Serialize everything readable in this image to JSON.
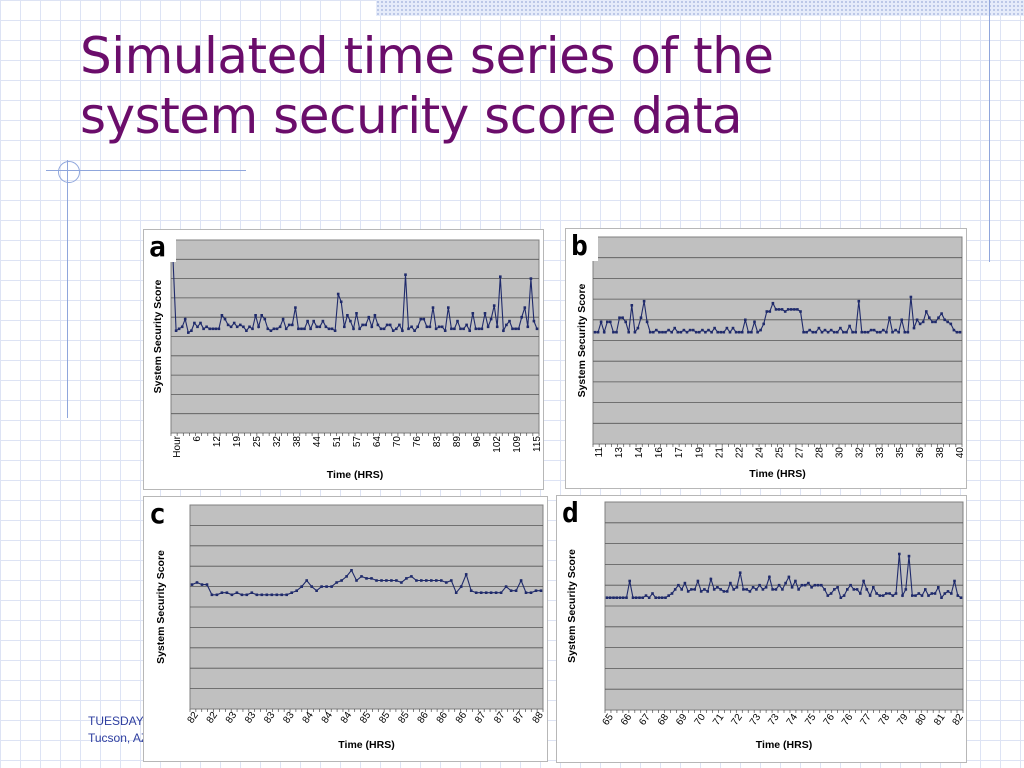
{
  "slide": {
    "title_line1": "Simulated time series of the",
    "title_line2": "system security score data",
    "footer_line1": "TUESDAY",
    "footer_line2": "Tucson, AZ"
  },
  "colors": {
    "title": "#6b0d6b",
    "plot_background": "#c0c0c0",
    "series": "#1f2a6b",
    "footer": "#2f3fa0"
  },
  "chart_data": [
    {
      "id": "a",
      "type": "line",
      "panel_label": "a",
      "xlabel": "Time (HRS)",
      "ylabel": "System Security Score",
      "ylim": [
        0,
        10
      ],
      "grid": true,
      "x_ticks": [
        "Hour",
        "6",
        "12",
        "19",
        "25",
        "32",
        "38",
        "44",
        "51",
        "57",
        "64",
        "70",
        "76",
        "83",
        "89",
        "96",
        "102",
        "109",
        "115"
      ],
      "series": [
        {
          "values": [
            9,
            5.3,
            5.4,
            5.5,
            5.9,
            5.2,
            5.3,
            5.7,
            5.5,
            5.7,
            5.4,
            5.5,
            5.4,
            5.4,
            5.4,
            5.4,
            6.1,
            5.9,
            5.6,
            5.5,
            5.7,
            5.5,
            5.6,
            5.5,
            5.3,
            5.5,
            5.4,
            6.1,
            5.5,
            6.1,
            5.9,
            5.4,
            5.3,
            5.4,
            5.4,
            5.5,
            5.9,
            5.4,
            5.6,
            5.6,
            6.5,
            5.4,
            5.4,
            5.4,
            5.8,
            5.4,
            5.8,
            5.5,
            5.5,
            5.8,
            5.5,
            5.4,
            5.4,
            5.3,
            7.2,
            6.8,
            5.5,
            6.1,
            5.8,
            5.4,
            6.2,
            5.4,
            5.6,
            5.6,
            6,
            5.5,
            6.1,
            5.6,
            5.4,
            5.4,
            5.6,
            5.6,
            5.3,
            5.4,
            5.6,
            5.3,
            8.2,
            5.4,
            5.5,
            5.3,
            5.5,
            5.9,
            5.9,
            5.5,
            5.5,
            6.5,
            5.4,
            5.5,
            5.5,
            5.3,
            6.5,
            5.4,
            5.4,
            5.8,
            5.4,
            5.4,
            5.6,
            5.3,
            6.2,
            5.4,
            5.4,
            5.4,
            6.2,
            5.5,
            5.9,
            6.6,
            5.5,
            8.1,
            5.3,
            5.6,
            5.8,
            5.4,
            5.4,
            5.4,
            6,
            6.5,
            5.5,
            8,
            5.8,
            5.4
          ]
        }
      ]
    },
    {
      "id": "b",
      "type": "line",
      "panel_label": "b",
      "xlabel": "Time (HRS)",
      "ylabel": "System Security Score",
      "ylim": [
        0,
        10
      ],
      "grid": true,
      "x_ticks": [
        "11",
        "13",
        "14",
        "16",
        "17",
        "19",
        "21",
        "22",
        "24",
        "25",
        "27",
        "28",
        "30",
        "32",
        "33",
        "35",
        "36",
        "38",
        "40"
      ],
      "series": [
        {
          "values": [
            5.4,
            5.4,
            5.9,
            5.4,
            5.9,
            5.9,
            5.4,
            5.4,
            6.1,
            6.1,
            5.9,
            5.4,
            6.7,
            5.4,
            5.6,
            6.1,
            6.9,
            5.9,
            5.4,
            5.4,
            5.5,
            5.4,
            5.4,
            5.4,
            5.5,
            5.4,
            5.6,
            5.4,
            5.4,
            5.5,
            5.4,
            5.5,
            5.5,
            5.4,
            5.4,
            5.5,
            5.4,
            5.5,
            5.4,
            5.6,
            5.4,
            5.4,
            5.4,
            5.6,
            5.4,
            5.6,
            5.4,
            5.4,
            5.4,
            6.0,
            5.4,
            5.4,
            5.9,
            5.4,
            5.5,
            5.8,
            6.4,
            6.4,
            6.8,
            6.5,
            6.5,
            6.5,
            6.4,
            6.5,
            6.5,
            6.5,
            6.5,
            6.4,
            5.4,
            5.4,
            5.5,
            5.4,
            5.4,
            5.6,
            5.4,
            5.5,
            5.4,
            5.5,
            5.4,
            5.4,
            5.6,
            5.4,
            5.4,
            5.7,
            5.4,
            5.4,
            6.9,
            5.4,
            5.4,
            5.4,
            5.5,
            5.5,
            5.4,
            5.4,
            5.5,
            5.4,
            6.1,
            5.4,
            5.5,
            5.4,
            6.0,
            5.4,
            5.4,
            7.1,
            5.6,
            6.0,
            5.8,
            5.9,
            6.4,
            6.1,
            5.9,
            5.9,
            6.1,
            6.3,
            6.0,
            5.9,
            5.8,
            5.5,
            5.4,
            5.4
          ]
        }
      ]
    },
    {
      "id": "c",
      "type": "line",
      "panel_label": "c",
      "xlabel": "Time (HRS)",
      "ylabel": "System Security Score",
      "ylim": [
        0,
        10
      ],
      "grid": true,
      "x_ticks": [
        "82",
        "82",
        "83",
        "83",
        "83",
        "83",
        "84",
        "84",
        "84",
        "85",
        "85",
        "85",
        "86",
        "86",
        "86",
        "87",
        "87",
        "87",
        "88"
      ],
      "series": [
        {
          "values": [
            6.1,
            6.2,
            6.1,
            6.1,
            5.6,
            5.6,
            5.7,
            5.7,
            5.6,
            5.7,
            5.6,
            5.6,
            5.7,
            5.6,
            5.6,
            5.6,
            5.6,
            5.6,
            5.6,
            5.6,
            5.7,
            5.8,
            6.0,
            6.3,
            6.0,
            5.8,
            6.0,
            6.0,
            6.0,
            6.2,
            6.3,
            6.5,
            6.8,
            6.3,
            6.5,
            6.4,
            6.4,
            6.3,
            6.3,
            6.3,
            6.3,
            6.3,
            6.2,
            6.4,
            6.5,
            6.3,
            6.3,
            6.3,
            6.3,
            6.3,
            6.3,
            6.2,
            6.3,
            5.7,
            6.0,
            6.6,
            5.8,
            5.7,
            5.7,
            5.7,
            5.7,
            5.7,
            5.7,
            6.0,
            5.8,
            5.8,
            6.3,
            5.7,
            5.7,
            5.8,
            5.8
          ]
        }
      ]
    },
    {
      "id": "d",
      "type": "line",
      "panel_label": "d",
      "xlabel": "Time (HRS)",
      "ylabel": "System Security Score",
      "ylim": [
        0,
        10
      ],
      "grid": true,
      "x_ticks": [
        "65",
        "66",
        "67",
        "68",
        "69",
        "70",
        "71",
        "72",
        "73",
        "73",
        "74",
        "75",
        "76",
        "76",
        "77",
        "78",
        "79",
        "80",
        "81",
        "82"
      ],
      "series": [
        {
          "values": [
            5.4,
            5.4,
            5.4,
            5.4,
            5.4,
            5.4,
            5.4,
            6.2,
            5.4,
            5.4,
            5.4,
            5.4,
            5.5,
            5.4,
            5.6,
            5.4,
            5.4,
            5.4,
            5.4,
            5.5,
            5.6,
            5.8,
            6.0,
            5.8,
            6.1,
            5.7,
            5.8,
            5.8,
            6.2,
            5.7,
            5.8,
            5.7,
            6.3,
            5.8,
            5.9,
            5.8,
            5.7,
            5.7,
            6.1,
            5.8,
            5.9,
            6.6,
            5.8,
            5.8,
            5.7,
            5.9,
            5.8,
            6.0,
            5.8,
            5.9,
            6.4,
            5.8,
            5.8,
            6.0,
            5.8,
            6.1,
            6.4,
            5.9,
            6.2,
            5.8,
            6.0,
            6.0,
            6.1,
            5.9,
            6.0,
            6.0,
            6.0,
            5.8,
            5.5,
            5.6,
            5.8,
            5.9,
            5.4,
            5.5,
            5.8,
            6.0,
            5.8,
            5.8,
            5.6,
            6.2,
            5.8,
            5.5,
            5.9,
            5.6,
            5.5,
            5.5,
            5.6,
            5.6,
            5.5,
            5.6,
            7.5,
            5.5,
            5.8,
            7.4,
            5.5,
            5.5,
            5.6,
            5.5,
            5.8,
            5.5,
            5.6,
            5.6,
            5.9,
            5.4,
            5.6,
            5.7,
            5.6,
            6.2,
            5.5,
            5.4
          ]
        }
      ]
    }
  ]
}
